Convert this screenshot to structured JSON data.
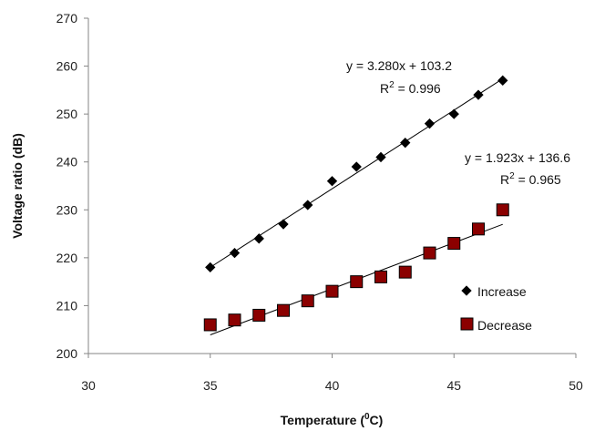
{
  "chart_data": {
    "type": "scatter",
    "xlabel": "Temperature (⁰C)",
    "xlabel_parts": {
      "base": "Temperature (",
      "sup": "0",
      "tail": "C)"
    },
    "ylabel": "Voltage ratio (dB)",
    "xlim": [
      30,
      50
    ],
    "ylim": [
      200,
      270
    ],
    "xticks": [
      30,
      35,
      40,
      45,
      50
    ],
    "yticks": [
      200,
      210,
      220,
      230,
      240,
      250,
      260,
      270
    ],
    "grid": false,
    "legend_position": "right",
    "series": [
      {
        "name": "Increase",
        "marker": "diamond",
        "color": "#000000",
        "x": [
          35,
          36,
          37,
          38,
          39,
          40,
          41,
          42,
          43,
          44,
          45,
          46,
          47
        ],
        "y": [
          218,
          221,
          224,
          227,
          231,
          236,
          239,
          241,
          244,
          248,
          250,
          254,
          257
        ],
        "trendline": {
          "slope": 3.28,
          "intercept": 103.2,
          "equation": "y = 3.280x + 103.2",
          "r2_label": "R",
          "r2_sup": "2",
          "r2_value": " = 0.996"
        }
      },
      {
        "name": "Decrease",
        "marker": "square",
        "color": "#8b0000",
        "x": [
          35,
          36,
          37,
          38,
          39,
          40,
          41,
          42,
          43,
          44,
          45,
          46,
          47
        ],
        "y": [
          206,
          207,
          208,
          209,
          211,
          213,
          215,
          216,
          217,
          221,
          223,
          226,
          230
        ],
        "trendline": {
          "slope": 1.923,
          "intercept": 136.6,
          "equation": "y = 1.923x + 136.6",
          "r2_label": "R",
          "r2_sup": "2",
          "r2_value": " = 0.965"
        }
      }
    ]
  }
}
